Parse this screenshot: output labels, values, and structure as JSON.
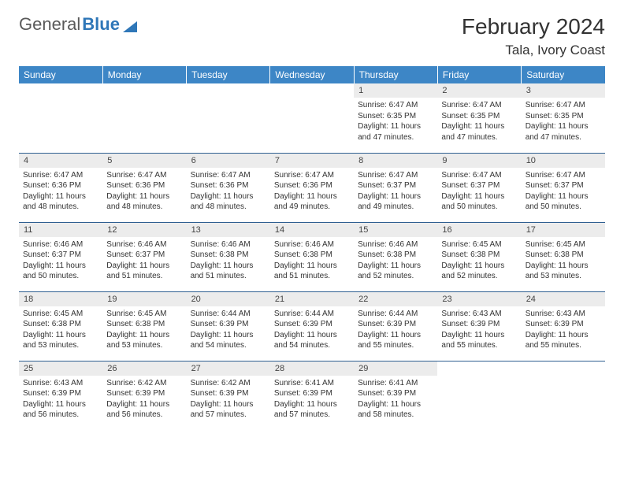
{
  "brand": {
    "part1": "General",
    "part2": "Blue"
  },
  "title": "February 2024",
  "location": "Tala, Ivory Coast",
  "colors": {
    "header_bg": "#3d86c6",
    "day_num_bg": "#ececec",
    "row_border": "#2f5f91",
    "brand_gray": "#5a5a5a",
    "brand_blue": "#2f77b8"
  },
  "typography": {
    "title_fontsize": 28,
    "location_fontsize": 17,
    "weekday_fontsize": 12,
    "daynum_fontsize": 11,
    "body_fontsize": 10
  },
  "weekdays": [
    "Sunday",
    "Monday",
    "Tuesday",
    "Wednesday",
    "Thursday",
    "Friday",
    "Saturday"
  ],
  "label_sunrise": "Sunrise:",
  "label_sunset": "Sunset:",
  "label_daylight_prefix": "Daylight:",
  "label_daylight_join": "and",
  "label_daylight_suffix": "minutes.",
  "weeks": [
    [
      {
        "empty": true
      },
      {
        "empty": true
      },
      {
        "empty": true
      },
      {
        "empty": true
      },
      {
        "n": "1",
        "rise": "6:47 AM",
        "set": "6:35 PM",
        "h": "11 hours",
        "m": "47"
      },
      {
        "n": "2",
        "rise": "6:47 AM",
        "set": "6:35 PM",
        "h": "11 hours",
        "m": "47"
      },
      {
        "n": "3",
        "rise": "6:47 AM",
        "set": "6:35 PM",
        "h": "11 hours",
        "m": "47"
      }
    ],
    [
      {
        "n": "4",
        "rise": "6:47 AM",
        "set": "6:36 PM",
        "h": "11 hours",
        "m": "48"
      },
      {
        "n": "5",
        "rise": "6:47 AM",
        "set": "6:36 PM",
        "h": "11 hours",
        "m": "48"
      },
      {
        "n": "6",
        "rise": "6:47 AM",
        "set": "6:36 PM",
        "h": "11 hours",
        "m": "48"
      },
      {
        "n": "7",
        "rise": "6:47 AM",
        "set": "6:36 PM",
        "h": "11 hours",
        "m": "49"
      },
      {
        "n": "8",
        "rise": "6:47 AM",
        "set": "6:37 PM",
        "h": "11 hours",
        "m": "49"
      },
      {
        "n": "9",
        "rise": "6:47 AM",
        "set": "6:37 PM",
        "h": "11 hours",
        "m": "50"
      },
      {
        "n": "10",
        "rise": "6:47 AM",
        "set": "6:37 PM",
        "h": "11 hours",
        "m": "50"
      }
    ],
    [
      {
        "n": "11",
        "rise": "6:46 AM",
        "set": "6:37 PM",
        "h": "11 hours",
        "m": "50"
      },
      {
        "n": "12",
        "rise": "6:46 AM",
        "set": "6:37 PM",
        "h": "11 hours",
        "m": "51"
      },
      {
        "n": "13",
        "rise": "6:46 AM",
        "set": "6:38 PM",
        "h": "11 hours",
        "m": "51"
      },
      {
        "n": "14",
        "rise": "6:46 AM",
        "set": "6:38 PM",
        "h": "11 hours",
        "m": "51"
      },
      {
        "n": "15",
        "rise": "6:46 AM",
        "set": "6:38 PM",
        "h": "11 hours",
        "m": "52"
      },
      {
        "n": "16",
        "rise": "6:45 AM",
        "set": "6:38 PM",
        "h": "11 hours",
        "m": "52"
      },
      {
        "n": "17",
        "rise": "6:45 AM",
        "set": "6:38 PM",
        "h": "11 hours",
        "m": "53"
      }
    ],
    [
      {
        "n": "18",
        "rise": "6:45 AM",
        "set": "6:38 PM",
        "h": "11 hours",
        "m": "53"
      },
      {
        "n": "19",
        "rise": "6:45 AM",
        "set": "6:38 PM",
        "h": "11 hours",
        "m": "53"
      },
      {
        "n": "20",
        "rise": "6:44 AM",
        "set": "6:39 PM",
        "h": "11 hours",
        "m": "54"
      },
      {
        "n": "21",
        "rise": "6:44 AM",
        "set": "6:39 PM",
        "h": "11 hours",
        "m": "54"
      },
      {
        "n": "22",
        "rise": "6:44 AM",
        "set": "6:39 PM",
        "h": "11 hours",
        "m": "55"
      },
      {
        "n": "23",
        "rise": "6:43 AM",
        "set": "6:39 PM",
        "h": "11 hours",
        "m": "55"
      },
      {
        "n": "24",
        "rise": "6:43 AM",
        "set": "6:39 PM",
        "h": "11 hours",
        "m": "55"
      }
    ],
    [
      {
        "n": "25",
        "rise": "6:43 AM",
        "set": "6:39 PM",
        "h": "11 hours",
        "m": "56"
      },
      {
        "n": "26",
        "rise": "6:42 AM",
        "set": "6:39 PM",
        "h": "11 hours",
        "m": "56"
      },
      {
        "n": "27",
        "rise": "6:42 AM",
        "set": "6:39 PM",
        "h": "11 hours",
        "m": "57"
      },
      {
        "n": "28",
        "rise": "6:41 AM",
        "set": "6:39 PM",
        "h": "11 hours",
        "m": "57"
      },
      {
        "n": "29",
        "rise": "6:41 AM",
        "set": "6:39 PM",
        "h": "11 hours",
        "m": "58"
      },
      {
        "empty": true
      },
      {
        "empty": true
      }
    ]
  ]
}
